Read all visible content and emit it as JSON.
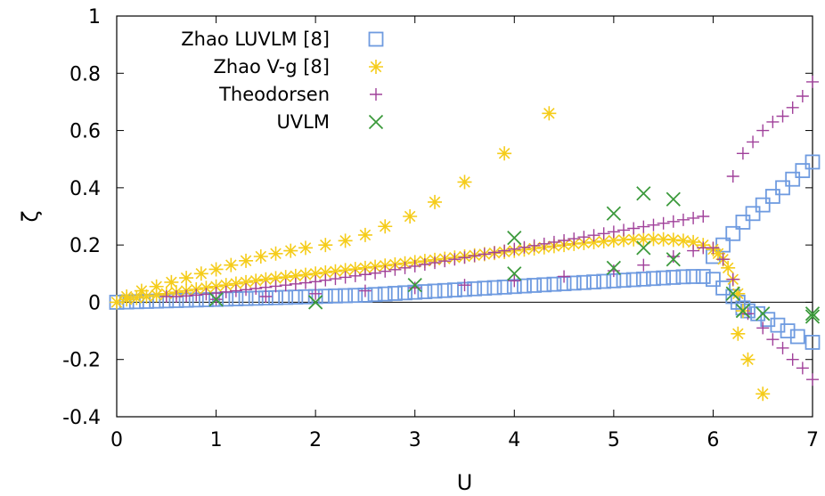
{
  "chart_data": {
    "type": "scatter",
    "xlabel": "U",
    "ylabel": "ζ",
    "xlim": [
      0,
      7
    ],
    "ylim": [
      -0.4,
      1
    ],
    "xticks": [
      "0",
      "1",
      "2",
      "3",
      "4",
      "5",
      "6",
      "7"
    ],
    "yticks": [
      "-0.4",
      "-0.2",
      "0",
      "0.2",
      "0.4",
      "0.6",
      "0.8",
      "1"
    ],
    "grid": false,
    "zero_line": true,
    "legend": "top-left",
    "series": [
      {
        "name": "Zhao LUVLM [8]",
        "marker": "open-square",
        "color": "#6f9be0",
        "points": [
          [
            0,
            0
          ],
          [
            0.1,
            0.001
          ],
          [
            0.2,
            0.002
          ],
          [
            0.3,
            0.003
          ],
          [
            0.4,
            0.004
          ],
          [
            0.5,
            0.005
          ],
          [
            0.6,
            0.006
          ],
          [
            0.7,
            0.007
          ],
          [
            0.8,
            0.008
          ],
          [
            0.9,
            0.009
          ],
          [
            1.0,
            0.01
          ],
          [
            1.1,
            0.011
          ],
          [
            1.2,
            0.012
          ],
          [
            1.3,
            0.013
          ],
          [
            1.4,
            0.014
          ],
          [
            1.5,
            0.015
          ],
          [
            1.6,
            0.016
          ],
          [
            1.7,
            0.017
          ],
          [
            1.8,
            0.018
          ],
          [
            1.9,
            0.019
          ],
          [
            2.0,
            0.02
          ],
          [
            2.1,
            0.021
          ],
          [
            2.2,
            0.022
          ],
          [
            2.3,
            0.023
          ],
          [
            2.4,
            0.024
          ],
          [
            2.5,
            0.025
          ],
          [
            2.6,
            0.027
          ],
          [
            2.7,
            0.029
          ],
          [
            2.8,
            0.031
          ],
          [
            2.9,
            0.033
          ],
          [
            3.0,
            0.035
          ],
          [
            3.1,
            0.037
          ],
          [
            3.2,
            0.039
          ],
          [
            3.3,
            0.041
          ],
          [
            3.4,
            0.043
          ],
          [
            3.5,
            0.045
          ],
          [
            3.6,
            0.047
          ],
          [
            3.7,
            0.049
          ],
          [
            3.8,
            0.051
          ],
          [
            3.9,
            0.053
          ],
          [
            4.0,
            0.055
          ],
          [
            4.1,
            0.057
          ],
          [
            4.2,
            0.059
          ],
          [
            4.3,
            0.061
          ],
          [
            4.4,
            0.063
          ],
          [
            4.5,
            0.065
          ],
          [
            4.6,
            0.067
          ],
          [
            4.7,
            0.069
          ],
          [
            4.8,
            0.071
          ],
          [
            4.9,
            0.073
          ],
          [
            5.0,
            0.075
          ],
          [
            5.1,
            0.077
          ],
          [
            5.2,
            0.079
          ],
          [
            5.3,
            0.081
          ],
          [
            5.4,
            0.083
          ],
          [
            5.5,
            0.085
          ],
          [
            5.6,
            0.087
          ],
          [
            5.7,
            0.089
          ],
          [
            5.8,
            0.09
          ],
          [
            5.9,
            0.09
          ],
          [
            6.0,
            0.08
          ],
          [
            6.1,
            0.05
          ],
          [
            6.2,
            0.02
          ],
          [
            6.25,
            0.0
          ],
          [
            6.3,
            -0.02
          ],
          [
            6.35,
            -0.03
          ],
          [
            6.45,
            -0.04
          ],
          [
            6.55,
            -0.06
          ],
          [
            6.65,
            -0.08
          ],
          [
            6.75,
            -0.1
          ],
          [
            6.85,
            -0.12
          ],
          [
            7.0,
            -0.14
          ],
          [
            6.0,
            0.16
          ],
          [
            6.1,
            0.2
          ],
          [
            6.2,
            0.24
          ],
          [
            6.3,
            0.28
          ],
          [
            6.4,
            0.31
          ],
          [
            6.5,
            0.34
          ],
          [
            6.6,
            0.37
          ],
          [
            6.7,
            0.4
          ],
          [
            6.8,
            0.43
          ],
          [
            6.9,
            0.46
          ],
          [
            7.0,
            0.49
          ]
        ]
      },
      {
        "name": "Zhao V-g [8]",
        "marker": "star",
        "color": "#f5cc1a",
        "points": [
          [
            0,
            0
          ],
          [
            0.1,
            0.01
          ],
          [
            0.2,
            0.015
          ],
          [
            0.3,
            0.02
          ],
          [
            0.4,
            0.025
          ],
          [
            0.5,
            0.03
          ],
          [
            0.6,
            0.035
          ],
          [
            0.7,
            0.04
          ],
          [
            0.8,
            0.045
          ],
          [
            0.9,
            0.05
          ],
          [
            1.0,
            0.055
          ],
          [
            1.1,
            0.06
          ],
          [
            1.2,
            0.065
          ],
          [
            1.3,
            0.07
          ],
          [
            1.4,
            0.075
          ],
          [
            1.5,
            0.08
          ],
          [
            1.6,
            0.084
          ],
          [
            1.7,
            0.088
          ],
          [
            1.8,
            0.092
          ],
          [
            1.9,
            0.096
          ],
          [
            2.0,
            0.1
          ],
          [
            2.1,
            0.104
          ],
          [
            2.2,
            0.108
          ],
          [
            2.3,
            0.112
          ],
          [
            2.4,
            0.116
          ],
          [
            2.5,
            0.12
          ],
          [
            2.6,
            0.124
          ],
          [
            2.7,
            0.128
          ],
          [
            2.8,
            0.132
          ],
          [
            2.9,
            0.136
          ],
          [
            3.0,
            0.14
          ],
          [
            3.1,
            0.144
          ],
          [
            3.2,
            0.148
          ],
          [
            3.3,
            0.152
          ],
          [
            3.4,
            0.156
          ],
          [
            3.5,
            0.16
          ],
          [
            3.6,
            0.164
          ],
          [
            3.7,
            0.168
          ],
          [
            3.8,
            0.172
          ],
          [
            3.9,
            0.176
          ],
          [
            4.0,
            0.18
          ],
          [
            4.1,
            0.184
          ],
          [
            4.2,
            0.188
          ],
          [
            4.3,
            0.192
          ],
          [
            4.4,
            0.196
          ],
          [
            4.5,
            0.2
          ],
          [
            4.6,
            0.204
          ],
          [
            4.7,
            0.207
          ],
          [
            4.8,
            0.21
          ],
          [
            4.9,
            0.213
          ],
          [
            5.0,
            0.216
          ],
          [
            5.1,
            0.218
          ],
          [
            5.2,
            0.22
          ],
          [
            5.3,
            0.221
          ],
          [
            5.4,
            0.221
          ],
          [
            5.5,
            0.22
          ],
          [
            5.6,
            0.218
          ],
          [
            5.7,
            0.215
          ],
          [
            5.8,
            0.21
          ],
          [
            5.9,
            0.2
          ],
          [
            6.0,
            0.185
          ],
          [
            6.05,
            0.17
          ],
          [
            6.1,
            0.15
          ],
          [
            6.15,
            0.12
          ],
          [
            6.2,
            0.08
          ],
          [
            6.25,
            0.03
          ],
          [
            6.3,
            -0.03
          ],
          [
            0.1,
            0.02
          ],
          [
            0.25,
            0.04
          ],
          [
            0.4,
            0.055
          ],
          [
            0.55,
            0.07
          ],
          [
            0.7,
            0.085
          ],
          [
            0.85,
            0.1
          ],
          [
            1.0,
            0.115
          ],
          [
            1.15,
            0.13
          ],
          [
            1.3,
            0.145
          ],
          [
            1.45,
            0.16
          ],
          [
            1.6,
            0.17
          ],
          [
            1.75,
            0.18
          ],
          [
            1.9,
            0.19
          ],
          [
            2.1,
            0.2
          ],
          [
            2.3,
            0.215
          ],
          [
            2.5,
            0.235
          ],
          [
            2.7,
            0.265
          ],
          [
            2.95,
            0.3
          ],
          [
            3.2,
            0.35
          ],
          [
            3.5,
            0.42
          ],
          [
            3.9,
            0.52
          ],
          [
            4.35,
            0.66
          ],
          [
            6.25,
            -0.11
          ],
          [
            6.35,
            -0.2
          ],
          [
            6.5,
            -0.32
          ]
        ]
      },
      {
        "name": "Theodorsen",
        "marker": "plus",
        "color": "#a0409a",
        "points": [
          [
            0.5,
            0.02
          ],
          [
            0.6,
            0.02
          ],
          [
            0.7,
            0.022
          ],
          [
            0.8,
            0.025
          ],
          [
            0.9,
            0.028
          ],
          [
            1.0,
            0.032
          ],
          [
            1.1,
            0.036
          ],
          [
            1.2,
            0.04
          ],
          [
            1.3,
            0.044
          ],
          [
            1.4,
            0.048
          ],
          [
            1.5,
            0.052
          ],
          [
            1.6,
            0.056
          ],
          [
            1.7,
            0.06
          ],
          [
            1.8,
            0.064
          ],
          [
            1.9,
            0.068
          ],
          [
            2.0,
            0.072
          ],
          [
            2.1,
            0.077
          ],
          [
            2.2,
            0.082
          ],
          [
            2.3,
            0.087
          ],
          [
            2.4,
            0.092
          ],
          [
            2.5,
            0.097
          ],
          [
            2.6,
            0.102
          ],
          [
            2.7,
            0.108
          ],
          [
            2.8,
            0.114
          ],
          [
            2.9,
            0.12
          ],
          [
            3.0,
            0.126
          ],
          [
            3.1,
            0.132
          ],
          [
            3.2,
            0.138
          ],
          [
            3.3,
            0.144
          ],
          [
            3.4,
            0.15
          ],
          [
            3.5,
            0.156
          ],
          [
            3.6,
            0.162
          ],
          [
            3.7,
            0.168
          ],
          [
            3.8,
            0.174
          ],
          [
            3.9,
            0.18
          ],
          [
            4.0,
            0.186
          ],
          [
            4.1,
            0.192
          ],
          [
            4.2,
            0.198
          ],
          [
            4.3,
            0.204
          ],
          [
            4.4,
            0.21
          ],
          [
            4.5,
            0.216
          ],
          [
            4.6,
            0.222
          ],
          [
            4.7,
            0.228
          ],
          [
            4.8,
            0.234
          ],
          [
            4.9,
            0.24
          ],
          [
            5.0,
            0.246
          ],
          [
            5.1,
            0.252
          ],
          [
            5.2,
            0.258
          ],
          [
            5.3,
            0.264
          ],
          [
            5.4,
            0.27
          ],
          [
            5.5,
            0.276
          ],
          [
            5.6,
            0.282
          ],
          [
            5.7,
            0.288
          ],
          [
            5.8,
            0.294
          ],
          [
            5.9,
            0.3
          ],
          [
            1.0,
            0.01
          ],
          [
            1.5,
            0.02
          ],
          [
            2.0,
            0.03
          ],
          [
            2.5,
            0.04
          ],
          [
            3.0,
            0.05
          ],
          [
            3.5,
            0.06
          ],
          [
            4.0,
            0.075
          ],
          [
            4.5,
            0.09
          ],
          [
            5.0,
            0.11
          ],
          [
            5.3,
            0.13
          ],
          [
            5.6,
            0.16
          ],
          [
            5.8,
            0.18
          ],
          [
            5.9,
            0.19
          ],
          [
            6.0,
            0.19
          ],
          [
            6.1,
            0.15
          ],
          [
            6.2,
            0.08
          ],
          [
            6.2,
            0.44
          ],
          [
            6.3,
            0.52
          ],
          [
            6.4,
            0.56
          ],
          [
            6.5,
            0.6
          ],
          [
            6.6,
            0.63
          ],
          [
            6.7,
            0.65
          ],
          [
            6.8,
            0.68
          ],
          [
            6.9,
            0.72
          ],
          [
            7.0,
            0.77
          ],
          [
            6.35,
            -0.04
          ],
          [
            6.5,
            -0.09
          ],
          [
            6.6,
            -0.13
          ],
          [
            6.7,
            -0.16
          ],
          [
            6.8,
            -0.2
          ],
          [
            6.9,
            -0.23
          ],
          [
            7.0,
            -0.27
          ]
        ]
      },
      {
        "name": "UVLM",
        "marker": "cross",
        "color": "#3c9a3c",
        "points": [
          [
            1.0,
            0.01
          ],
          [
            2.0,
            0.0
          ],
          [
            3.0,
            0.06
          ],
          [
            4.0,
            0.1
          ],
          [
            5.0,
            0.12
          ],
          [
            5.6,
            0.15
          ],
          [
            4.0,
            0.225
          ],
          [
            5.0,
            0.31
          ],
          [
            5.3,
            0.19
          ],
          [
            5.3,
            0.38
          ],
          [
            5.6,
            0.36
          ],
          [
            6.2,
            0.03
          ],
          [
            6.3,
            -0.03
          ],
          [
            6.5,
            -0.04
          ],
          [
            7.0,
            -0.04
          ],
          [
            7.0,
            -0.05
          ]
        ]
      }
    ]
  }
}
